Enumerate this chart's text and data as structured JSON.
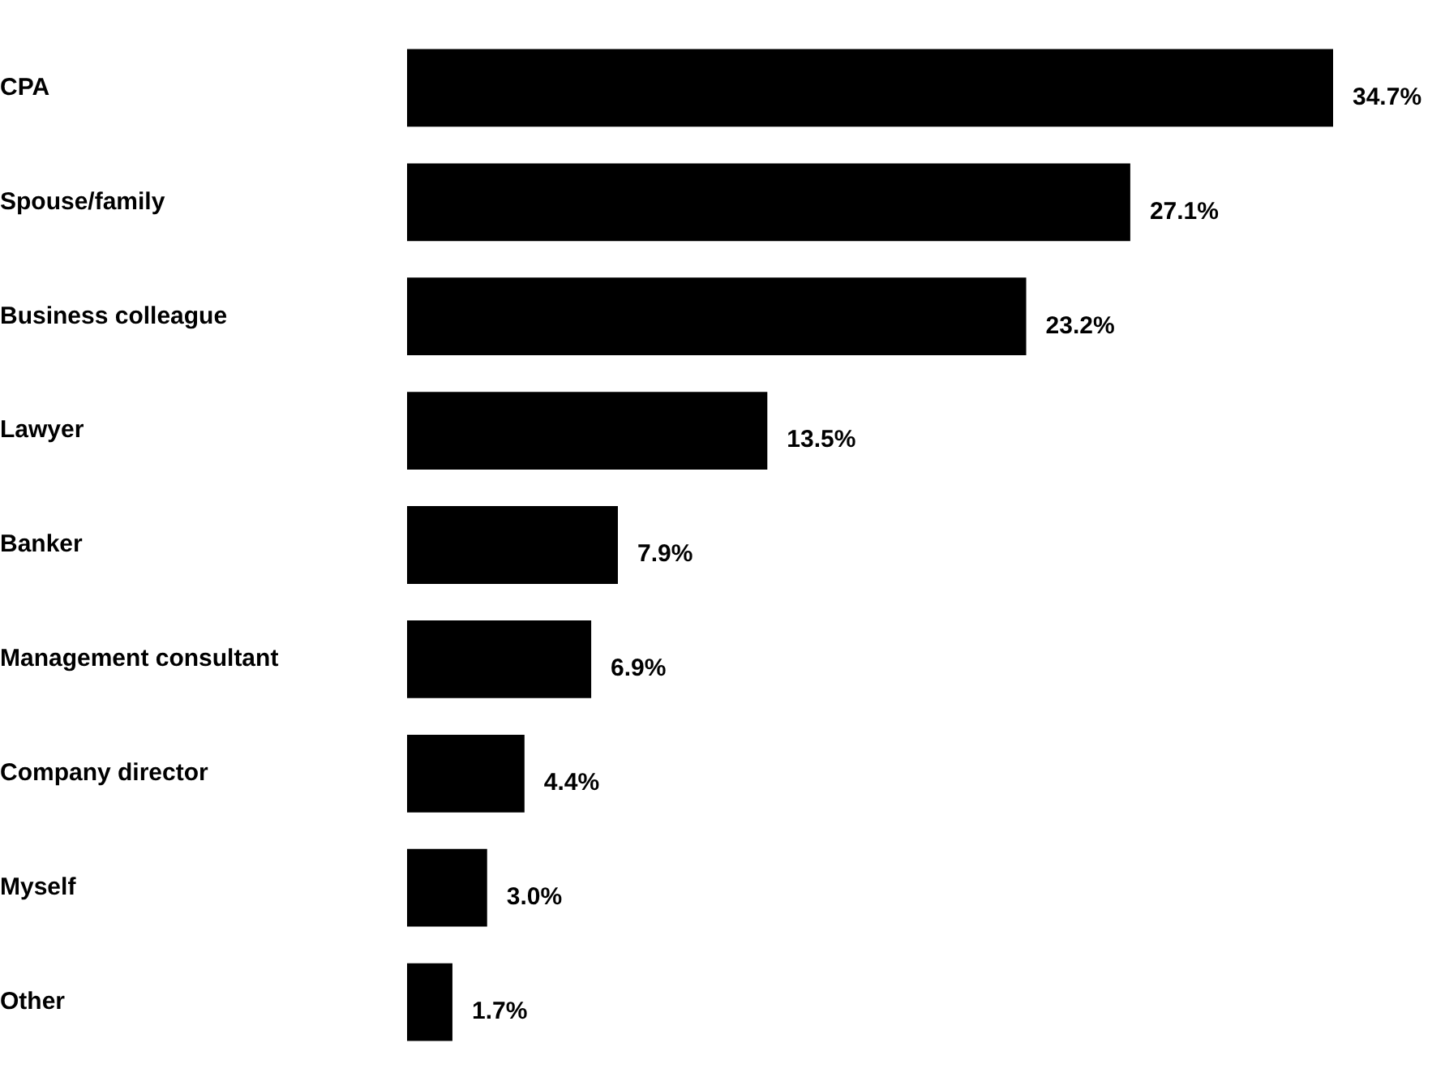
{
  "chart_data": {
    "type": "bar",
    "orientation": "horizontal",
    "categories": [
      "CPA",
      "Spouse/family",
      "Business colleague",
      "Lawyer",
      "Banker",
      "Management consultant",
      "Company director",
      "Myself",
      "Other"
    ],
    "values": [
      34.7,
      27.1,
      23.2,
      13.5,
      7.9,
      6.9,
      4.4,
      3.0,
      1.7
    ],
    "value_labels": [
      "34.7%",
      "27.1%",
      "23.2%",
      "13.5%",
      "7.9%",
      "6.9%",
      "4.4%",
      "3.0%",
      "1.7%"
    ],
    "color": "#000000",
    "grid": false,
    "legend": false,
    "tick_labels": "y"
  }
}
